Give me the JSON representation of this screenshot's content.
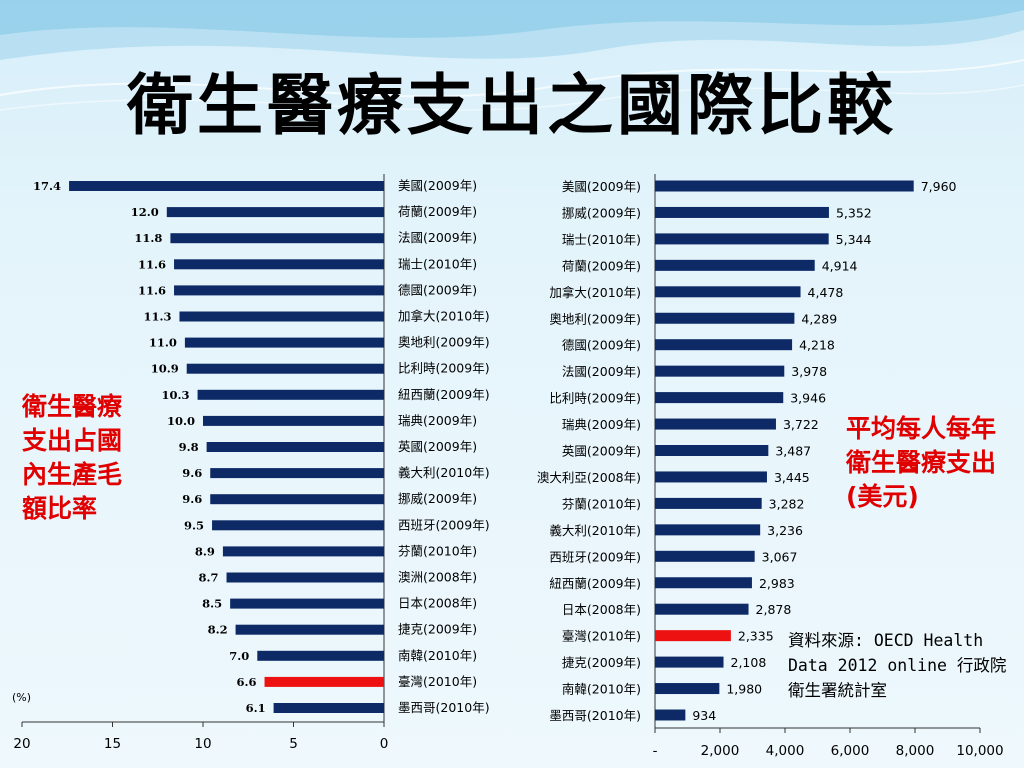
{
  "title": "衛生醫療支出之國際比較",
  "left_label": "衛生醫療支出占國內生產毛額比率",
  "right_label": "平均每人每年衛生醫療支出 (美元)",
  "source_note": "資料來源: OECD Health Data 2012 online 行政院衛生署統計室",
  "colors": {
    "bar": "#0d2a66",
    "highlight": "#ee1111",
    "accent_text": "#e00000"
  },
  "chart_data": [
    {
      "type": "bar",
      "orientation": "horizontal",
      "x_reversed": true,
      "unit": "(%)",
      "xlim": [
        0,
        20
      ],
      "xticks": [
        "20",
        "15",
        "10",
        "5",
        "0"
      ],
      "highlight": "臺灣(2010年)",
      "categories": [
        "美國(2009年)",
        "荷蘭(2009年)",
        "法國(2009年)",
        "瑞士(2010年)",
        "德國(2009年)",
        "加拿大(2010年)",
        "奧地利(2009年)",
        "比利時(2009年)",
        "紐西蘭(2009年)",
        "瑞典(2009年)",
        "英國(2009年)",
        "義大利(2010年)",
        "挪威(2009年)",
        "西班牙(2009年)",
        "芬蘭(2010年)",
        "澳洲(2008年)",
        "日本(2008年)",
        "捷克(2009年)",
        "南韓(2010年)",
        "臺灣(2010年)",
        "墨西哥(2010年)"
      ],
      "values": [
        17.4,
        12.0,
        11.8,
        11.6,
        11.6,
        11.3,
        11.0,
        10.9,
        10.3,
        10.0,
        9.8,
        9.6,
        9.6,
        9.5,
        8.9,
        8.7,
        8.5,
        8.2,
        7.0,
        6.6,
        6.1
      ],
      "value_labels": [
        "17.4",
        "12.0",
        "11.8",
        "11.6",
        "11.6",
        "11.3",
        "11.0",
        "10.9",
        "10.3",
        "10.0",
        "9.8",
        "9.6",
        "9.6",
        "9.5",
        "8.9",
        "8.7",
        "8.5",
        "8.2",
        "7.0",
        "6.6",
        "6.1"
      ]
    },
    {
      "type": "bar",
      "orientation": "horizontal",
      "xlim": [
        0,
        10000
      ],
      "xticks": [
        "-",
        "2,000",
        "4,000",
        "6,000",
        "8,000",
        "10,000"
      ],
      "highlight": "臺灣(2010年)",
      "categories": [
        "美國(2009年)",
        "挪威(2009年)",
        "瑞士(2010年)",
        "荷蘭(2009年)",
        "加拿大(2010年)",
        "奧地利(2009年)",
        "德國(2009年)",
        "法國(2009年)",
        "比利時(2009年)",
        "瑞典(2009年)",
        "英國(2009年)",
        "澳大利亞(2008年)",
        "芬蘭(2010年)",
        "義大利(2010年)",
        "西班牙(2009年)",
        "紐西蘭(2009年)",
        "日本(2008年)",
        "臺灣(2010年)",
        "捷克(2009年)",
        "南韓(2010年)",
        "墨西哥(2010年)"
      ],
      "values": [
        7960,
        5352,
        5344,
        4914,
        4478,
        4289,
        4218,
        3978,
        3946,
        3722,
        3487,
        3445,
        3282,
        3236,
        3067,
        2983,
        2878,
        2335,
        2108,
        1980,
        934
      ],
      "value_labels": [
        "7,960",
        "5,352",
        "5,344",
        "4,914",
        "4,478",
        "4,289",
        "4,218",
        "3,978",
        "3,946",
        "3,722",
        "3,487",
        "3,445",
        "3,282",
        "3,236",
        "3,067",
        "2,983",
        "2,878",
        "2,335",
        "2,108",
        "1,980",
        "934"
      ]
    }
  ]
}
